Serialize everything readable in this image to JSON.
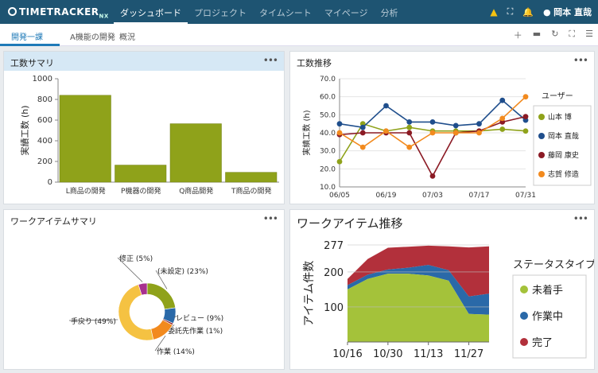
{
  "app": {
    "logo_text": "TIMETRACKER",
    "logo_suffix": "NX",
    "nav": [
      "ダッシュボード",
      "プロジェクト",
      "タイムシート",
      "マイページ",
      "分析"
    ],
    "user_name": "岡本 直哉"
  },
  "subbar": {
    "tabs": [
      "開発一課",
      "A機能の開発",
      "概況"
    ]
  },
  "panels": {
    "p1_title": "工数サマリ",
    "p2_title": "工数推移",
    "p3_title": "ワークアイテムサマリ",
    "p4_title": "ワークアイテム推移",
    "menu": "•••"
  },
  "colors": {
    "olive": "#8fa21a",
    "navy": "#1f4e8c",
    "darkred": "#8b1a24",
    "orange": "#f28a1e",
    "green": "#a4c23a",
    "blue": "#2a69a8",
    "red": "#b2303b"
  },
  "chart_data": [
    {
      "type": "bar",
      "categories": [
        "L商品の開発",
        "P機器の開発",
        "Q商品開発",
        "T商品の開発"
      ],
      "values": [
        840,
        165,
        565,
        95
      ],
      "ylabel": "実績工数 (h)",
      "ylim": [
        0,
        1000
      ],
      "yticks": [
        0,
        200,
        400,
        600,
        800,
        1000
      ]
    },
    {
      "type": "line",
      "x": [
        "06/05",
        "06/12",
        "06/19",
        "06/26",
        "07/03",
        "07/10",
        "07/17",
        "07/24",
        "07/31"
      ],
      "xticks": [
        "06/05",
        "06/19",
        "07/03",
        "07/17",
        "07/31"
      ],
      "ylabel": "実績工数 (h)",
      "ylim": [
        10,
        70
      ],
      "yticks": [
        "10.0",
        "20.0",
        "30.0",
        "40.0",
        "50.0",
        "60.0",
        "70.0"
      ],
      "legend_title": "ユーザー",
      "series": [
        {
          "name": "山本 博",
          "values": [
            24,
            45,
            41,
            43,
            41,
            41,
            41,
            42,
            41
          ]
        },
        {
          "name": "岡本 直哉",
          "values": [
            45,
            43,
            55,
            46,
            46,
            44,
            45,
            58,
            47
          ]
        },
        {
          "name": "藤岡 康史",
          "values": [
            39,
            40,
            40,
            40,
            16,
            40,
            41,
            46,
            49
          ]
        },
        {
          "name": "志賀 修造",
          "values": [
            40,
            32,
            41,
            32,
            40,
            40,
            40,
            48,
            60
          ]
        }
      ]
    },
    {
      "type": "pie",
      "labels": [
        "(未設定)",
        "レビュー",
        "委託先作業",
        "作業",
        "手戻り",
        "修正"
      ],
      "label_texts": [
        "(未設定) (23%)",
        "レビュー (9%)",
        "委託先作業 (1%)",
        "作業 (14%)",
        "手戻り (49%)",
        "修正 (5%)"
      ],
      "values": [
        23,
        9,
        1,
        14,
        49,
        5
      ],
      "colors": [
        "#8fa21a",
        "#2a69a8",
        "#8b1a24",
        "#f28a1e",
        "#f5c242",
        "#a8308f"
      ]
    },
    {
      "type": "area",
      "x": [
        "10/16",
        "10/23",
        "10/30",
        "11/06",
        "11/13",
        "11/20",
        "11/27",
        "12/01"
      ],
      "xticks": [
        "10/16",
        "10/30",
        "11/13",
        "11/27"
      ],
      "ylabel": "アイテム件数",
      "yticks": [
        100,
        200,
        277
      ],
      "ylim": [
        0,
        277
      ],
      "legend_title": "ステータスタイプ",
      "series": [
        {
          "name": "未着手",
          "values": [
            150,
            180,
            195,
            195,
            190,
            175,
            80,
            78
          ]
        },
        {
          "name": "作業中",
          "values": [
            12,
            12,
            12,
            17,
            30,
            30,
            50,
            60
          ]
        },
        {
          "name": "完了",
          "values": [
            18,
            45,
            62,
            60,
            55,
            68,
            140,
            135
          ]
        }
      ]
    }
  ]
}
